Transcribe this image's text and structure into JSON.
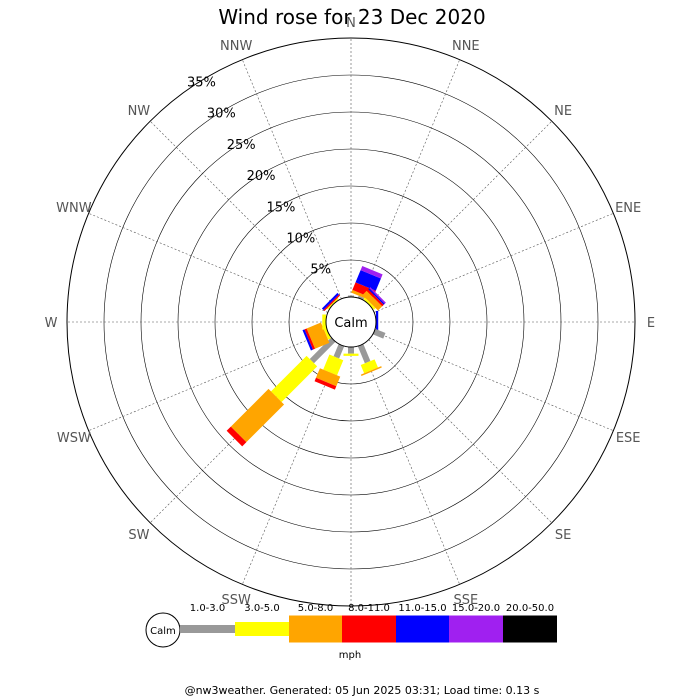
{
  "title": "Wind rose for 23 Dec 2020",
  "calm_label": "Calm",
  "directions": [
    "N",
    "NNE",
    "NE",
    "ENE",
    "E",
    "ESE",
    "SE",
    "SSE",
    "S",
    "SSW",
    "SW",
    "WSW",
    "W",
    "WNW",
    "NW",
    "NNW"
  ],
  "rings": [
    "5%",
    "10%",
    "15%",
    "20%",
    "25%",
    "30%",
    "35%"
  ],
  "legend": {
    "calm_label": "Calm",
    "unit": "mph",
    "bins": [
      {
        "label": "1.0-3.0",
        "color": "#999999"
      },
      {
        "label": "3.0-5.0",
        "color": "#ffff00"
      },
      {
        "label": "5.0-8.0",
        "color": "#ffa500"
      },
      {
        "label": "8.0-11.0",
        "color": "#ff0000"
      },
      {
        "label": "11.0-15.0",
        "color": "#0000ff"
      },
      {
        "label": "15.0-20.0",
        "color": "#a020f0"
      },
      {
        "label": "20.0-50.0",
        "color": "#000000"
      }
    ]
  },
  "chart_data": {
    "type": "wind-rose",
    "title": "Wind rose for 23 Dec 2020",
    "unit": "mph",
    "radial_max_percent": 35,
    "ring_step_percent": 5,
    "speed_bins": [
      "1.0-3.0",
      "3.0-5.0",
      "5.0-8.0",
      "8.0-11.0",
      "11.0-15.0",
      "15.0-20.0",
      "20.0-50.0"
    ],
    "directions": [
      "N",
      "NNE",
      "NE",
      "ENE",
      "E",
      "ESE",
      "SE",
      "SSE",
      "S",
      "SSW",
      "SW",
      "WSW",
      "W",
      "WNW",
      "NW",
      "NNW"
    ],
    "series": [
      {
        "name": "1.0-3.0",
        "values": [
          0.2,
          0.3,
          0.0,
          0.0,
          0.0,
          1.5,
          0.0,
          2.5,
          0.9,
          1.8,
          4.1,
          0.0,
          0.0,
          0.0,
          0.0,
          0.0
        ]
      },
      {
        "name": "3.0-5.0",
        "values": [
          0.0,
          0.0,
          0.3,
          0.0,
          0.0,
          0.0,
          0.0,
          1.2,
          0.3,
          2.2,
          6.8,
          0.4,
          0.5,
          0.0,
          0.2,
          0.0
        ]
      },
      {
        "name": "5.0-8.0",
        "values": [
          0.0,
          0.4,
          0.8,
          0.0,
          0.0,
          0.0,
          0.0,
          0.2,
          0.0,
          1.4,
          7.2,
          2.1,
          0.0,
          0.0,
          0.0,
          0.0
        ]
      },
      {
        "name": "8.0-11.0",
        "values": [
          0.0,
          1.1,
          0.3,
          0.0,
          0.0,
          0.0,
          0.0,
          0.0,
          0.0,
          0.5,
          0.8,
          0.3,
          0.0,
          0.0,
          0.2,
          0.0
        ]
      },
      {
        "name": "11.0-15.0",
        "values": [
          0.0,
          1.8,
          0.2,
          0.0,
          0.3,
          0.0,
          0.0,
          0.0,
          0.0,
          0.0,
          0.0,
          0.3,
          0.0,
          0.0,
          0.3,
          0.0
        ]
      },
      {
        "name": "15.0-20.0",
        "values": [
          0.0,
          0.6,
          0.2,
          0.0,
          0.0,
          0.0,
          0.0,
          0.0,
          0.0,
          0.0,
          0.0,
          0.0,
          0.0,
          0.0,
          0.0,
          0.0
        ]
      },
      {
        "name": "20.0-50.0",
        "values": [
          0.0,
          0.0,
          0.0,
          0.0,
          0.0,
          0.0,
          0.0,
          0.0,
          0.0,
          0.0,
          0.0,
          0.0,
          0.0,
          0.0,
          0.0,
          0.0
        ]
      }
    ]
  },
  "footer": "@nw3weather. Generated: 05 Jun 2025 03:31; Load time: 0.13 s"
}
